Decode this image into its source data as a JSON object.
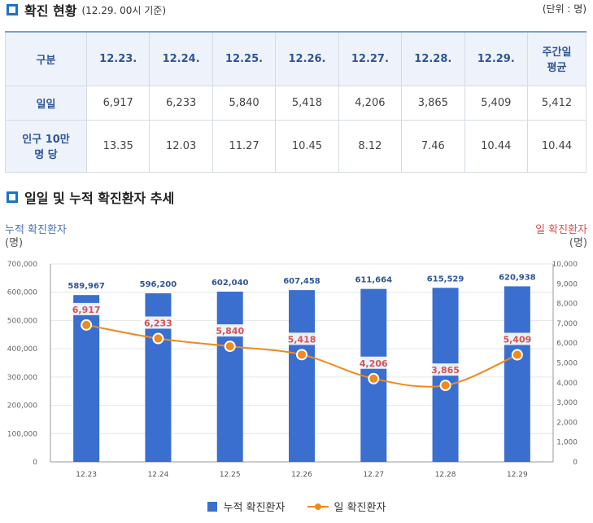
{
  "section1": {
    "title": "확진 현황",
    "subtitle": "(12.29. 00시 기준)",
    "unit": "(단위 : 명)"
  },
  "table": {
    "header_label": "구분",
    "columns": [
      "12.23.",
      "12.24.",
      "12.25.",
      "12.26.",
      "12.27.",
      "12.28.",
      "12.29."
    ],
    "avg_label": [
      "주간일",
      "평균"
    ],
    "rows": [
      {
        "label": [
          "일일"
        ],
        "values": [
          "6,917",
          "6,233",
          "5,840",
          "5,418",
          "4,206",
          "3,865",
          "5,409"
        ],
        "avg": "5,412"
      },
      {
        "label": [
          "인구 10만",
          "명 당"
        ],
        "values": [
          "13.35",
          "12.03",
          "11.27",
          "10.45",
          "8.12",
          "7.46",
          "10.44"
        ],
        "avg": "10.44"
      }
    ]
  },
  "section2": {
    "title": "일일 및 누적 확진환자 추세"
  },
  "chart_data": {
    "type": "bar",
    "categories": [
      "12.23",
      "12.24",
      "12.25",
      "12.26",
      "12.27",
      "12.28",
      "12.29"
    ],
    "left_axis": {
      "label": "누적 확진환자",
      "unit": "(명)",
      "ylim": [
        0,
        700000
      ],
      "ticks": [
        "700,000",
        "600,000",
        "500,000",
        "400,000",
        "300,000",
        "200,000",
        "100,000",
        "0"
      ]
    },
    "right_axis": {
      "label": "일 확진환자",
      "unit": "(명)",
      "ylim": [
        0,
        10000
      ],
      "ticks": [
        "10,000",
        "9,000",
        "8,000",
        "7,000",
        "6,000",
        "5,000",
        "4,000",
        "3,000",
        "2,000",
        "1,000",
        "0"
      ]
    },
    "series": [
      {
        "name": "누적 확진환자",
        "kind": "bar",
        "axis": "left",
        "values": [
          589967,
          596200,
          602040,
          607458,
          611664,
          615529,
          620938
        ],
        "labels": [
          "589,967",
          "596,200",
          "602,040",
          "607,458",
          "611,664",
          "615,529",
          "620,938"
        ]
      },
      {
        "name": "일 확진환자",
        "kind": "line",
        "axis": "right",
        "values": [
          6917,
          6233,
          5840,
          5418,
          4206,
          3865,
          5409
        ],
        "labels": [
          "6,917",
          "6,233",
          "5,840",
          "5,418",
          "4,206",
          "3,865",
          "5,409"
        ]
      }
    ],
    "colors": {
      "bar": "#3a6fcf",
      "line": "#f08a1c",
      "left_axis_label": "#4a6fb5",
      "right_axis_label": "#d9534f",
      "line_label": "#d9534f",
      "bar_label": "#2f5597"
    },
    "legend_position": "bottom"
  }
}
